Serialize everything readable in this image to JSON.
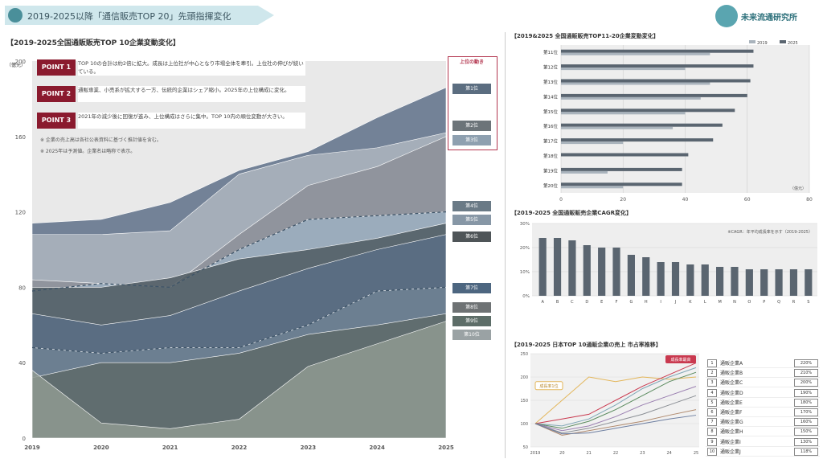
{
  "header": {
    "banner_text": "2019-2025以降「通信販売TOP 20」先頭指揮変化",
    "brand_text": "未来流通研究所"
  },
  "main_panel": {
    "title": "【2019-2025全国通販販売TOP 10企業変動変化】",
    "y_unit": "（億元）",
    "points": [
      {
        "tag": "POINT 1",
        "text": "TOP 10の合計は約2倍に拡大。成長は上位社が中心となり市場全体を牽引。上位社の伸びが続いている。"
      },
      {
        "tag": "POINT 2",
        "text": "通販専業、小売系が拡大する一方、伝統的企業はシェア縮小。2025年の上位構成に変化。"
      },
      {
        "tag": "POINT 3",
        "text": "2021年の減少後に回復が進み、上位構成はさらに集中。TOP 10内の順位変動が大きい。"
      }
    ],
    "notes": [
      "※ 企業の売上高は各社公表資料に基づく推計値を含む。",
      "※ 2025年は予測値。企業名は略称で表示。"
    ],
    "highlight_title": "上位の動き",
    "side_labels": [
      "第1位",
      "第2位",
      "第3位",
      "第4位",
      "第5位",
      "第6位",
      "第7位",
      "第8位",
      "第9位",
      "第10位"
    ]
  },
  "colors": {
    "accent_red": "#8a1a2e",
    "highlight_red": "#b3364f",
    "bar": "#5a6570",
    "bar_light": "#a9b3bc"
  },
  "chart_data": [
    {
      "type": "area",
      "title": "【2019-2025全国通販販売TOP 10企業変動変化】",
      "x": [
        "2019",
        "2020",
        "2021",
        "2022",
        "2023",
        "2024",
        "2025"
      ],
      "ylim": [
        0,
        200
      ],
      "yticks": [
        0,
        40,
        80,
        120,
        160,
        200
      ],
      "series": [
        {
          "values": [
            36,
            8,
            5,
            10,
            38,
            50,
            62
          ]
        },
        {
          "values": [
            32,
            40,
            40,
            45,
            55,
            60,
            66
          ]
        },
        {
          "values": [
            48,
            45,
            48,
            48,
            60,
            78,
            80
          ]
        },
        {
          "values": [
            66,
            60,
            65,
            78,
            90,
            100,
            108
          ]
        },
        {
          "values": [
            80,
            80,
            85,
            95,
            100,
            106,
            114
          ]
        },
        {
          "values": [
            78,
            82,
            80,
            100,
            116,
            118,
            120
          ]
        },
        {
          "values": [
            84,
            82,
            80,
            108,
            134,
            144,
            160
          ]
        },
        {
          "values": [
            108,
            108,
            110,
            140,
            150,
            154,
            162
          ]
        },
        {
          "values": [
            114,
            116,
            125,
            142,
            152,
            170,
            186
          ]
        }
      ]
    },
    {
      "type": "bar",
      "title": "【2019&2025 全国通販販売TOP11-20企業変動変化】",
      "orientation": "horizontal",
      "legend": [
        "2019",
        "2025"
      ],
      "categories": [
        "第11位",
        "第12位",
        "第13位",
        "第14位",
        "第15位",
        "第16位",
        "第17位",
        "第18位",
        "第19位",
        "第20位"
      ],
      "series": [
        {
          "name": "2019",
          "values": [
            48,
            40,
            48,
            45,
            40,
            36,
            20,
            0,
            15,
            20
          ]
        },
        {
          "name": "2025",
          "values": [
            62,
            62,
            61,
            60,
            56,
            52,
            49,
            41,
            39,
            39
          ]
        }
      ],
      "xlim": [
        0,
        80
      ],
      "xticks": [
        0,
        20,
        40,
        60,
        80
      ],
      "xlabel": "（億元）"
    },
    {
      "type": "bar",
      "title": "【2019-2025 全国通販販売企業CAGR変化】",
      "note": "※CAGR：年平均成長率を示す（2019-2025）",
      "categories": [
        "A",
        "B",
        "C",
        "D",
        "E",
        "F",
        "G",
        "H",
        "I",
        "J",
        "K",
        "L",
        "M",
        "N",
        "O",
        "P",
        "Q",
        "R",
        "S"
      ],
      "values": [
        24,
        24,
        23,
        21,
        20,
        20,
        17,
        16,
        14,
        14,
        13,
        13,
        12,
        12,
        11,
        11,
        11,
        11,
        11
      ],
      "ylim": [
        0,
        30
      ],
      "yticks": [
        0,
        10,
        20,
        30
      ],
      "yticklabels": [
        "0%",
        "10%",
        "20%",
        "30%"
      ]
    },
    {
      "type": "line",
      "title": "【2019-2025 日本TOP 10通販企業の売上 市占率推移】",
      "x": [
        "2019",
        "20",
        "21",
        "22",
        "23",
        "24",
        "25"
      ],
      "ylim": [
        50,
        250
      ],
      "yticks": [
        50,
        100,
        150,
        200,
        250
      ],
      "series": [
        {
          "values": [
            100,
            150,
            200,
            190,
            200,
            195,
            200
          ]
        },
        {
          "values": [
            100,
            110,
            120,
            150,
            180,
            205,
            230
          ]
        },
        {
          "values": [
            100,
            95,
            110,
            140,
            175,
            200,
            220
          ]
        },
        {
          "values": [
            100,
            90,
            105,
            130,
            160,
            190,
            210
          ]
        },
        {
          "values": [
            100,
            85,
            95,
            115,
            140,
            160,
            180
          ]
        },
        {
          "values": [
            100,
            80,
            90,
            105,
            120,
            140,
            160
          ]
        },
        {
          "values": [
            100,
            75,
            85,
            95,
            105,
            118,
            130
          ]
        },
        {
          "values": [
            100,
            78,
            80,
            90,
            100,
            110,
            118
          ]
        }
      ],
      "annotations": [
        "成長率1位",
        "成長率最高"
      ]
    }
  ],
  "right_table": {
    "rows": [
      {
        "rank": "1",
        "name": "通販企業A",
        "val": "220%"
      },
      {
        "rank": "2",
        "name": "通販企業B",
        "val": "210%"
      },
      {
        "rank": "3",
        "name": "通販企業C",
        "val": "200%"
      },
      {
        "rank": "4",
        "name": "通販企業D",
        "val": "190%"
      },
      {
        "rank": "5",
        "name": "通販企業E",
        "val": "180%"
      },
      {
        "rank": "6",
        "name": "通販企業F",
        "val": "170%"
      },
      {
        "rank": "7",
        "name": "通販企業G",
        "val": "160%"
      },
      {
        "rank": "8",
        "name": "通販企業H",
        "val": "150%"
      },
      {
        "rank": "9",
        "name": "通販企業I",
        "val": "130%"
      },
      {
        "rank": "10",
        "name": "通販企業J",
        "val": "118%"
      }
    ]
  }
}
